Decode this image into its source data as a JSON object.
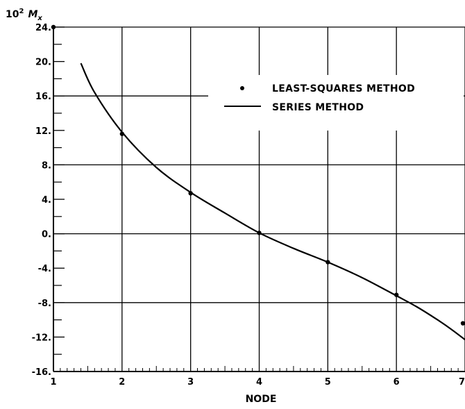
{
  "chart_data": {
    "type": "line",
    "xlabel": "NODE",
    "ylabel": "10² Mx",
    "ylabel_parts": {
      "prefix": "10",
      "power": "2",
      "symbol": "M",
      "subscript": "x"
    },
    "xlim": [
      1,
      7
    ],
    "ylim": [
      -16,
      24
    ],
    "x_ticks": [
      1,
      2,
      3,
      4,
      5,
      6,
      7
    ],
    "x_tick_labels": [
      "1",
      "2",
      "3",
      "4",
      "5",
      "6",
      "7"
    ],
    "y_ticks": [
      24,
      20,
      16,
      12,
      8,
      4,
      0,
      -4,
      -8,
      -12,
      -16
    ],
    "y_tick_labels": [
      "24.",
      "20.",
      "16.",
      "12.",
      "8.",
      "4.",
      "0.",
      "-4.",
      "-8.",
      "-12.",
      "-16."
    ],
    "grid": true,
    "legend_position": "top-right",
    "series": [
      {
        "name": "LEAST-SQUARES METHOD",
        "style": "points",
        "color": "#000000",
        "x": [
          1,
          2,
          3,
          4,
          5,
          6,
          7
        ],
        "y": [
          24.0,
          11.6,
          4.7,
          0.1,
          -3.3,
          -7.1,
          -10.4
        ]
      },
      {
        "name": "SERIES METHOD",
        "style": "line",
        "color": "#000000",
        "x": [
          1.4,
          1.6,
          2.0,
          2.5,
          3.0,
          3.5,
          4.0,
          4.5,
          5.0,
          5.5,
          6.0,
          6.3,
          6.6,
          6.8,
          7.0
        ],
        "y": [
          19.8,
          16.4,
          11.8,
          7.7,
          4.8,
          2.4,
          0.1,
          -1.7,
          -3.3,
          -5.1,
          -7.2,
          -8.5,
          -10.0,
          -11.1,
          -12.3
        ]
      }
    ]
  }
}
